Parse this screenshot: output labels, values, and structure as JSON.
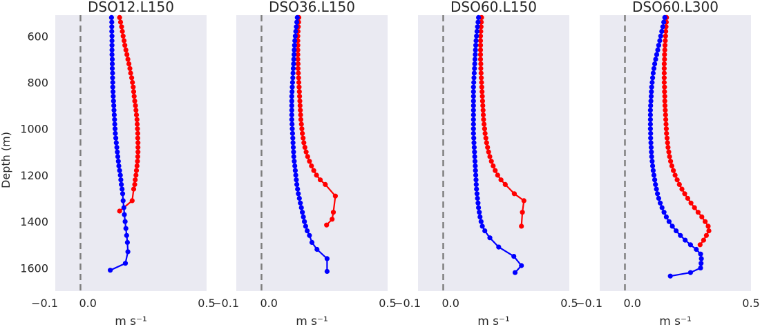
{
  "chart_data": [
    {
      "type": "line",
      "title": "DSO12.L150",
      "xlabel": "m s⁻¹",
      "ylabel": "Depth (m)",
      "xlim": [
        -0.1,
        0.5
      ],
      "ylim": [
        1700,
        510
      ],
      "xticks": [
        "−0.1",
        "0.0",
        "0.5"
      ],
      "yticks": [
        "600",
        "800",
        "1000",
        "1200",
        "1400",
        "1600"
      ],
      "reference_line": 0.0,
      "grid": false,
      "series": [
        {
          "color": "#ff0000",
          "x": [
            0.155,
            0.159,
            0.163,
            0.166,
            0.169,
            0.173,
            0.176,
            0.18,
            0.184,
            0.188,
            0.192,
            0.196,
            0.199,
            0.203,
            0.206,
            0.209,
            0.211,
            0.213,
            0.215,
            0.218,
            0.22,
            0.222,
            0.224,
            0.225,
            0.226,
            0.227,
            0.227,
            0.228,
            0.228,
            0.228,
            0.227,
            0.226,
            0.224,
            0.222,
            0.22,
            0.217,
            0.215,
            0.211,
            0.205,
            0.155
          ],
          "y": [
            520,
            540,
            560,
            580,
            600,
            620,
            640,
            660,
            680,
            700,
            720,
            740,
            760,
            780,
            800,
            820,
            840,
            860,
            880,
            900,
            920,
            940,
            960,
            980,
            1000,
            1020,
            1040,
            1060,
            1080,
            1100,
            1120,
            1140,
            1160,
            1180,
            1200,
            1220,
            1240,
            1260,
            1310,
            1355
          ]
        },
        {
          "color": "#0000ff",
          "x": [
            0.123,
            0.124,
            0.124,
            0.124,
            0.125,
            0.125,
            0.125,
            0.125,
            0.125,
            0.126,
            0.126,
            0.126,
            0.127,
            0.127,
            0.128,
            0.128,
            0.129,
            0.13,
            0.131,
            0.132,
            0.133,
            0.134,
            0.135,
            0.136,
            0.137,
            0.138,
            0.14,
            0.142,
            0.144,
            0.146,
            0.148,
            0.15,
            0.152,
            0.155,
            0.158,
            0.16,
            0.162,
            0.165,
            0.167,
            0.169,
            0.172,
            0.174,
            0.177,
            0.18,
            0.183,
            0.186,
            0.188,
            0.178,
            0.118
          ],
          "y": [
            520,
            540,
            560,
            580,
            600,
            620,
            640,
            660,
            680,
            700,
            720,
            740,
            760,
            780,
            800,
            820,
            840,
            860,
            880,
            900,
            920,
            940,
            960,
            980,
            1000,
            1020,
            1040,
            1060,
            1080,
            1100,
            1120,
            1140,
            1160,
            1180,
            1200,
            1220,
            1240,
            1260,
            1280,
            1310,
            1340,
            1370,
            1400,
            1430,
            1460,
            1490,
            1530,
            1580,
            1610
          ]
        }
      ]
    },
    {
      "type": "line",
      "title": "DSO36.L150",
      "xlabel": "m s⁻¹",
      "xlim": [
        -0.1,
        0.5
      ],
      "ylim": [
        1700,
        510
      ],
      "xticks": [
        "−0.1",
        "0.0",
        "0.5"
      ],
      "reference_line": 0.0,
      "grid": false,
      "series": [
        {
          "color": "#ff0000",
          "x": [
            0.148,
            0.147,
            0.146,
            0.145,
            0.144,
            0.144,
            0.144,
            0.144,
            0.144,
            0.144,
            0.145,
            0.145,
            0.146,
            0.147,
            0.148,
            0.149,
            0.15,
            0.151,
            0.152,
            0.153,
            0.154,
            0.155,
            0.156,
            0.158,
            0.16,
            0.162,
            0.165,
            0.168,
            0.172,
            0.177,
            0.183,
            0.19,
            0.198,
            0.207,
            0.218,
            0.233,
            0.253,
            0.293,
            0.285,
            0.28,
            0.258
          ],
          "y": [
            520,
            540,
            560,
            580,
            600,
            620,
            640,
            660,
            680,
            700,
            720,
            740,
            760,
            780,
            800,
            820,
            840,
            860,
            880,
            900,
            920,
            940,
            960,
            980,
            1000,
            1020,
            1040,
            1060,
            1080,
            1100,
            1120,
            1140,
            1160,
            1180,
            1200,
            1220,
            1240,
            1290,
            1360,
            1390,
            1415
          ]
        },
        {
          "color": "#0000ff",
          "x": [
            0.142,
            0.14,
            0.138,
            0.136,
            0.134,
            0.132,
            0.131,
            0.13,
            0.129,
            0.128,
            0.127,
            0.126,
            0.125,
            0.124,
            0.123,
            0.122,
            0.121,
            0.12,
            0.12,
            0.12,
            0.12,
            0.12,
            0.12,
            0.121,
            0.122,
            0.123,
            0.124,
            0.125,
            0.126,
            0.127,
            0.128,
            0.13,
            0.132,
            0.134,
            0.136,
            0.138,
            0.14,
            0.143,
            0.146,
            0.15,
            0.154,
            0.158,
            0.162,
            0.166,
            0.17,
            0.175,
            0.181,
            0.19,
            0.2,
            0.22,
            0.26,
            0.26
          ],
          "y": [
            520,
            540,
            560,
            580,
            600,
            620,
            640,
            660,
            680,
            700,
            720,
            740,
            760,
            780,
            800,
            820,
            840,
            860,
            880,
            900,
            920,
            940,
            960,
            980,
            1000,
            1020,
            1040,
            1060,
            1080,
            1100,
            1120,
            1140,
            1160,
            1180,
            1200,
            1220,
            1240,
            1260,
            1280,
            1300,
            1320,
            1340,
            1360,
            1380,
            1400,
            1420,
            1440,
            1460,
            1490,
            1520,
            1560,
            1615
          ]
        }
      ]
    },
    {
      "type": "line",
      "title": "DSO60.L150",
      "xlabel": "m s⁻¹",
      "xlim": [
        -0.1,
        0.5
      ],
      "ylim": [
        1700,
        510
      ],
      "xticks": [
        "−0.1",
        "0.0",
        "0.5"
      ],
      "reference_line": 0.0,
      "grid": false,
      "series": [
        {
          "color": "#ff0000",
          "x": [
            0.152,
            0.151,
            0.15,
            0.149,
            0.148,
            0.148,
            0.148,
            0.148,
            0.148,
            0.148,
            0.149,
            0.149,
            0.15,
            0.151,
            0.152,
            0.153,
            0.154,
            0.155,
            0.156,
            0.157,
            0.158,
            0.159,
            0.16,
            0.162,
            0.164,
            0.166,
            0.169,
            0.172,
            0.176,
            0.18,
            0.185,
            0.191,
            0.198,
            0.206,
            0.216,
            0.229,
            0.246,
            0.282,
            0.32,
            0.314,
            0.31
          ],
          "y": [
            520,
            540,
            560,
            580,
            600,
            620,
            640,
            660,
            680,
            700,
            720,
            740,
            760,
            780,
            800,
            820,
            840,
            860,
            880,
            900,
            920,
            940,
            960,
            980,
            1000,
            1020,
            1040,
            1060,
            1080,
            1100,
            1120,
            1140,
            1160,
            1180,
            1200,
            1220,
            1240,
            1280,
            1310,
            1360,
            1420
          ]
        },
        {
          "color": "#0000ff",
          "x": [
            0.14,
            0.138,
            0.136,
            0.134,
            0.132,
            0.13,
            0.129,
            0.128,
            0.127,
            0.126,
            0.125,
            0.124,
            0.123,
            0.122,
            0.121,
            0.12,
            0.12,
            0.12,
            0.12,
            0.12,
            0.12,
            0.12,
            0.12,
            0.12,
            0.12,
            0.12,
            0.121,
            0.122,
            0.123,
            0.124,
            0.125,
            0.126,
            0.127,
            0.128,
            0.129,
            0.13,
            0.131,
            0.132,
            0.134,
            0.136,
            0.138,
            0.14,
            0.143,
            0.146,
            0.15,
            0.155,
            0.165,
            0.185,
            0.22,
            0.28,
            0.31,
            0.285
          ],
          "y": [
            520,
            540,
            560,
            580,
            600,
            620,
            640,
            660,
            680,
            700,
            720,
            740,
            760,
            780,
            800,
            820,
            840,
            860,
            880,
            900,
            920,
            940,
            960,
            980,
            1000,
            1020,
            1040,
            1060,
            1080,
            1100,
            1120,
            1140,
            1160,
            1180,
            1200,
            1220,
            1240,
            1260,
            1280,
            1300,
            1320,
            1340,
            1360,
            1380,
            1400,
            1420,
            1440,
            1470,
            1510,
            1550,
            1590,
            1620
          ]
        }
      ]
    },
    {
      "type": "line",
      "title": "DSO60.L300",
      "xlabel": "m s⁻¹",
      "xlim": [
        -0.1,
        0.5
      ],
      "ylim": [
        1700,
        510
      ],
      "xticks": [
        "−0.1",
        "0.0",
        "0.5"
      ],
      "reference_line": 0.0,
      "grid": false,
      "series": [
        {
          "color": "#ff0000",
          "x": [
            0.165,
            0.164,
            0.163,
            0.162,
            0.161,
            0.16,
            0.159,
            0.158,
            0.157,
            0.157,
            0.156,
            0.156,
            0.156,
            0.156,
            0.156,
            0.157,
            0.157,
            0.158,
            0.158,
            0.159,
            0.16,
            0.161,
            0.162,
            0.163,
            0.164,
            0.165,
            0.167,
            0.169,
            0.171,
            0.174,
            0.177,
            0.181,
            0.186,
            0.192,
            0.199,
            0.207,
            0.216,
            0.226,
            0.237,
            0.249,
            0.262,
            0.276,
            0.29,
            0.305,
            0.318,
            0.33,
            0.333,
            0.323,
            0.312,
            0.298
          ],
          "y": [
            520,
            540,
            560,
            580,
            600,
            620,
            640,
            660,
            680,
            700,
            720,
            740,
            760,
            780,
            800,
            820,
            840,
            860,
            880,
            900,
            920,
            940,
            960,
            980,
            1000,
            1020,
            1040,
            1060,
            1080,
            1100,
            1120,
            1140,
            1160,
            1180,
            1200,
            1220,
            1240,
            1260,
            1280,
            1300,
            1320,
            1340,
            1360,
            1380,
            1400,
            1420,
            1440,
            1460,
            1480,
            1500
          ]
        },
        {
          "color": "#0000ff",
          "x": [
            0.158,
            0.154,
            0.15,
            0.146,
            0.142,
            0.138,
            0.134,
            0.13,
            0.126,
            0.122,
            0.118,
            0.115,
            0.112,
            0.11,
            0.108,
            0.106,
            0.105,
            0.104,
            0.103,
            0.102,
            0.101,
            0.101,
            0.101,
            0.101,
            0.101,
            0.102,
            0.102,
            0.103,
            0.104,
            0.105,
            0.106,
            0.108,
            0.11,
            0.112,
            0.115,
            0.118,
            0.121,
            0.125,
            0.129,
            0.134,
            0.14,
            0.147,
            0.155,
            0.164,
            0.175,
            0.188,
            0.203,
            0.22,
            0.239,
            0.26,
            0.283,
            0.3,
            0.303,
            0.302,
            0.3,
            0.26,
            0.18
          ],
          "y": [
            520,
            540,
            560,
            580,
            600,
            620,
            640,
            660,
            680,
            700,
            720,
            740,
            760,
            780,
            800,
            820,
            840,
            860,
            880,
            900,
            920,
            940,
            960,
            980,
            1000,
            1020,
            1040,
            1060,
            1080,
            1100,
            1120,
            1140,
            1160,
            1180,
            1200,
            1220,
            1240,
            1260,
            1280,
            1300,
            1320,
            1340,
            1360,
            1380,
            1400,
            1420,
            1440,
            1460,
            1480,
            1500,
            1520,
            1540,
            1560,
            1580,
            1600,
            1620,
            1635
          ]
        }
      ]
    }
  ]
}
